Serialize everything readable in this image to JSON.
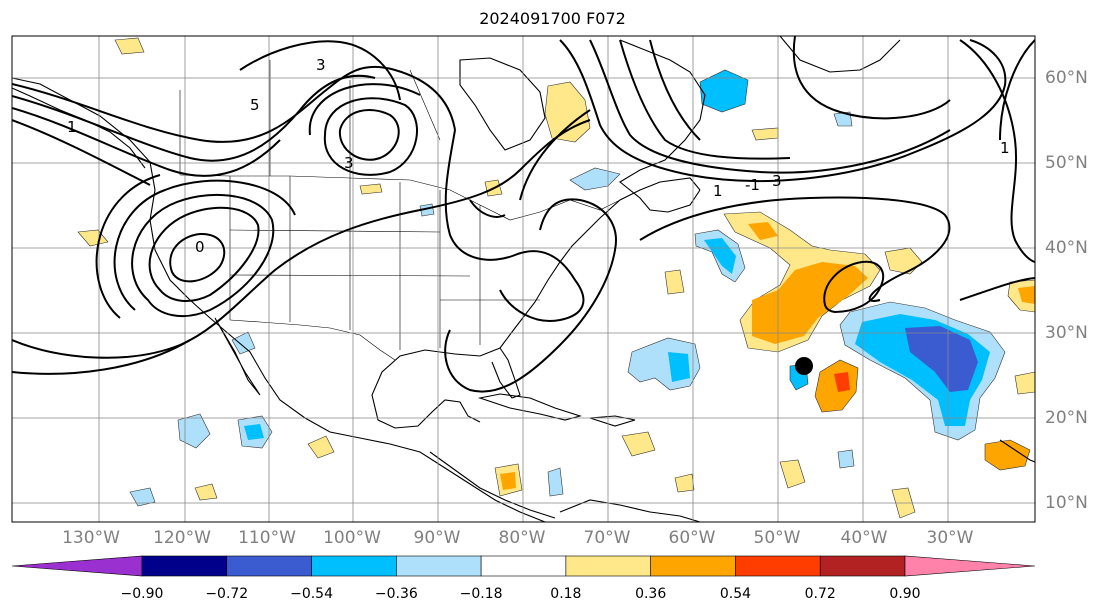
{
  "title": "2024091700 F072",
  "lon_labels": [
    "130°W",
    "120°W",
    "110°W",
    "100°W",
    "90°W",
    "80°W",
    "70°W",
    "60°W",
    "50°W",
    "40°W",
    "30°W"
  ],
  "lat_labels": [
    "60°N",
    "50°N",
    "40°N",
    "30°N",
    "20°N",
    "10°N"
  ],
  "colorbar": {
    "ticks": [
      "−0.90",
      "−0.72",
      "−0.54",
      "−0.36",
      "−0.18",
      "0.18",
      "0.36",
      "0.54",
      "0.72",
      "0.90"
    ],
    "colors": [
      "#9b30d0",
      "#00008b",
      "#3a5cd0",
      "#00bfff",
      "#aee0fb",
      "#ffffff",
      "#ffe88a",
      "#ffa500",
      "#ff3d00",
      "#b22222",
      "#ff82ab"
    ]
  },
  "contour_labels": [
    "3",
    "5",
    "3",
    "1",
    "3",
    "1",
    "-1",
    "1",
    "0"
  ],
  "marker": "storm-position"
}
